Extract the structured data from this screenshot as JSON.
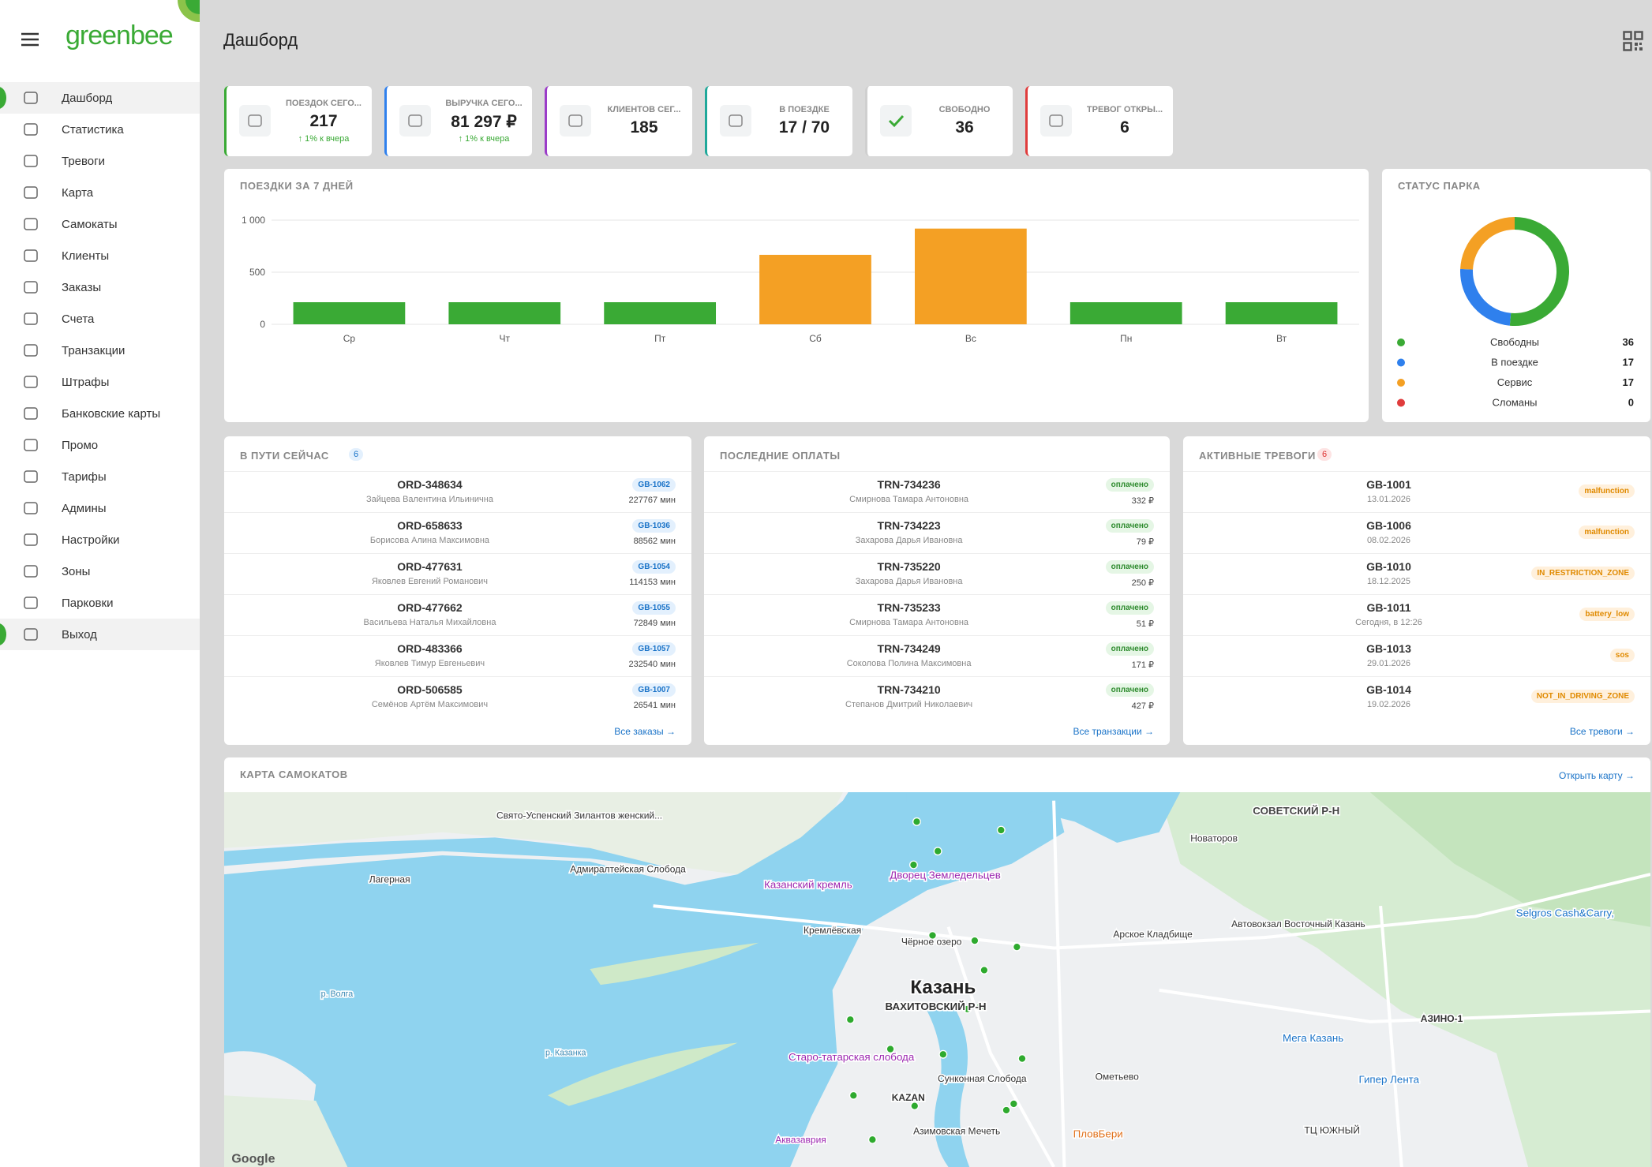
{
  "sidebar": {
    "logo": "greenbee",
    "nav": [
      "Дашборд",
      "Статистика",
      "Тревоги",
      "Карта",
      "Самокаты",
      "Клиенты",
      "Заказы",
      "Счета",
      "Транзакции",
      "Штрафы",
      "Банковские карты",
      "Промо",
      "Тарифы",
      "Админы",
      "Настройки",
      "Зоны",
      "Парковки",
      "Выход"
    ]
  },
  "header": {
    "title": "Дашборд"
  },
  "kpis": [
    {
      "label": "ПОЕЗДОК СЕГО...",
      "value": "217",
      "change": "↑ 1% к вчера"
    },
    {
      "label": "ВЫРУЧКА СЕГО...",
      "value": "81 297 ₽",
      "change": "↑ 1% к вчера"
    },
    {
      "label": "КЛИЕНТОВ СЕГ...",
      "value": "185"
    },
    {
      "label": "В ПОЕЗДКЕ",
      "value": "17 / 70"
    },
    {
      "label": "СВОБОДНО",
      "value": "36"
    },
    {
      "label": "ТРЕВОГ ОТКРЫ...",
      "value": "6"
    }
  ],
  "chart_data": [
    {
      "type": "bar",
      "title": "ПОЕЗДКИ ЗА 7 ДНЕЙ",
      "categories": [
        "Ср",
        "Чт",
        "Пт",
        "Сб",
        "Вс",
        "Пн",
        "Вт"
      ],
      "values": [
        212,
        212,
        212,
        667,
        919,
        212,
        212
      ],
      "colors": [
        "#3aaa35",
        "#3aaa35",
        "#3aaa35",
        "#f4a024",
        "#f4a024",
        "#3aaa35",
        "#3aaa35"
      ],
      "ylim": [
        0,
        1000
      ],
      "yticks": [
        0,
        500,
        {
          "value": 1000,
          "label": "1 000"
        }
      ],
      "grid": true
    },
    {
      "type": "donut",
      "title": "СТАТУС ПАРКА",
      "categories": [
        "Свободны",
        "В поездке",
        "Сервис",
        "Сломаны"
      ],
      "values": [
        36,
        17,
        17,
        0
      ],
      "colors": [
        "#3aaa35",
        "#2f80ed",
        "#f4a024",
        "#e03c3c"
      ]
    }
  ],
  "in_transit": {
    "title": "В ПУТИ СЕЙЧАС",
    "count": 6,
    "link": "Все заказы →",
    "rows": [
      {
        "id": "ORD-348634",
        "sub": "Зайцева Валентина Ильинична",
        "badge": "GB-1062",
        "extra": "227767 мин"
      },
      {
        "id": "ORD-658633",
        "sub": "Борисова Алина Максимовна",
        "badge": "GB-1036",
        "extra": "88562 мин"
      },
      {
        "id": "ORD-477631",
        "sub": "Яковлев Евгений Романович",
        "badge": "GB-1054",
        "extra": "114153 мин"
      },
      {
        "id": "ORD-477662",
        "sub": "Васильева Наталья Михайловна",
        "badge": "GB-1055",
        "extra": "72849 мин"
      },
      {
        "id": "ORD-483366",
        "sub": "Яковлев Тимур Евгеньевич",
        "badge": "GB-1057",
        "extra": "232540 мин"
      },
      {
        "id": "ORD-506585",
        "sub": "Семёнов Артём Максимович",
        "badge": "GB-1007",
        "extra": "26541 мин"
      }
    ]
  },
  "payments": {
    "title": "ПОСЛЕДНИЕ ОПЛАТЫ",
    "link": "Все транзакции →",
    "rows": [
      {
        "id": "TRN-734236",
        "sub": "Смирнова Тамара Антоновна",
        "badge": "оплачено",
        "extra": "332 ₽"
      },
      {
        "id": "TRN-734223",
        "sub": "Захарова Дарья Ивановна",
        "badge": "оплачено",
        "extra": "79 ₽"
      },
      {
        "id": "TRN-735220",
        "sub": "Захарова Дарья Ивановна",
        "badge": "оплачено",
        "extra": "250 ₽"
      },
      {
        "id": "TRN-735233",
        "sub": "Смирнова Тамара Антоновна",
        "badge": "оплачено",
        "extra": "51 ₽"
      },
      {
        "id": "TRN-734249",
        "sub": "Соколова Полина Максимовна",
        "badge": "оплачено",
        "extra": "171 ₽"
      },
      {
        "id": "TRN-734210",
        "sub": "Степанов Дмитрий Николаевич",
        "badge": "оплачено",
        "extra": "427 ₽"
      }
    ]
  },
  "alerts": {
    "title": "АКТИВНЫЕ ТРЕВОГИ",
    "count": 6,
    "link": "Все тревоги →",
    "rows": [
      {
        "id": "GB-1001",
        "sub": "13.01.2026",
        "badge": "malfunction"
      },
      {
        "id": "GB-1006",
        "sub": "08.02.2026",
        "badge": "malfunction"
      },
      {
        "id": "GB-1010",
        "sub": "18.12.2025",
        "badge": "IN_RESTRICTION_ZONE"
      },
      {
        "id": "GB-1011",
        "sub": "Сегодня, в 12:26",
        "badge": "battery_low"
      },
      {
        "id": "GB-1013",
        "sub": "29.01.2026",
        "badge": "sos"
      },
      {
        "id": "GB-1014",
        "sub": "19.02.2026",
        "badge": "NOT_IN_DRIVING_ZONE"
      }
    ]
  },
  "map": {
    "title": "КАРТА САМОКАТОВ",
    "link": "Открыть карту →",
    "attribution": "Google",
    "labels": [
      "Казань",
      "ВАХИТОВСКИЙ Р-Н",
      "СОВЕТСКИЙ Р-Н",
      "Казанский кремль",
      "Дворец Земледельцев",
      "Кремлёвская",
      "Чёрное озеро",
      "Арское Кладбище",
      "Автовокзал Восточный Казань",
      "Selgros Cash&Carry,",
      "Мега Казань",
      "Гипер Лента",
      "Старо-татарская слобода",
      "Сунконная Слобода",
      "Азимовская Мечеть",
      "ПловБери",
      "Аквазаврия",
      "Новаторов",
      "Адмиралтейская Слобода",
      "Свято-Успенский Зилантов женский...",
      "Лагерная",
      "Ометьево",
      "ТЦ ЮЖНЫЙ",
      "KAZAN",
      "АЗИНО-1",
      "р. Волга",
      "р. Казанка"
    ]
  }
}
